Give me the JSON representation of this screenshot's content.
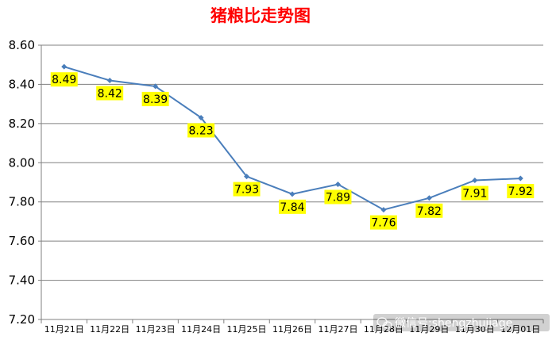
{
  "chart_data": {
    "type": "line",
    "title": "猪粮比走势图",
    "categories": [
      "11月21日",
      "11月22日",
      "11月23日",
      "11月24日",
      "11月25日",
      "11月26日",
      "11月27日",
      "11月28日",
      "11月29日",
      "11月30日",
      "12月01日"
    ],
    "series": [
      {
        "values": [
          8.49,
          8.42,
          8.39,
          8.23,
          7.93,
          7.84,
          7.89,
          7.76,
          7.82,
          7.91,
          7.92
        ]
      }
    ],
    "data_labels": [
      "8.49",
      "8.42",
      "8.39",
      "8.23",
      "7.93",
      "7.84",
      "7.89",
      "7.76",
      "7.82",
      "7.91",
      "7.92"
    ],
    "y_ticks": [
      "7.20",
      "7.40",
      "7.60",
      "7.80",
      "8.00",
      "8.20",
      "8.40",
      "8.60"
    ],
    "ylim": [
      7.2,
      8.6
    ],
    "grid": true,
    "xlabel": "",
    "ylabel": ""
  },
  "watermark": {
    "text": "微信号:shengzhujiage"
  },
  "colors": {
    "title": "#ff0000",
    "line": "#4a7ebb",
    "label_bg": "#ffff00",
    "grid": "#808080",
    "axis": "#808080"
  }
}
